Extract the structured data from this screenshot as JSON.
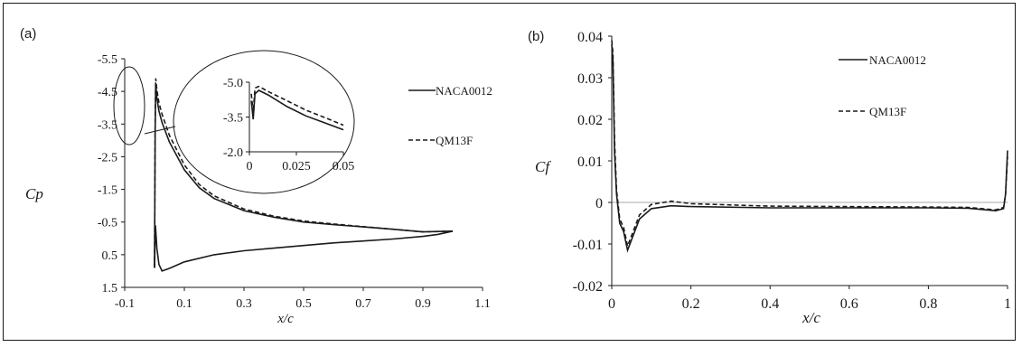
{
  "chart_data": [
    {
      "panel_label": "(a)",
      "type": "line",
      "xlabel": "x/c",
      "ylabel": "Cp",
      "xlim": [
        -0.1,
        1.1
      ],
      "ylim": [
        -5.5,
        1.5
      ],
      "y_inverted": true,
      "x_ticks": [
        "-0.1",
        "0.1",
        "0.3",
        "0.5",
        "0.7",
        "0.9",
        "1.1"
      ],
      "y_ticks": [
        "-5.5",
        "-4.5",
        "-3.5",
        "-2.5",
        "-1.5",
        "-0.5",
        "0.5",
        "1.5"
      ],
      "grid": false,
      "legend_position": "right",
      "series": [
        {
          "name": "NACA0012",
          "style": "solid",
          "upper": [
            [
              0.0,
              0.9
            ],
            [
              0.002,
              -3.2
            ],
            [
              0.004,
              -4.75
            ],
            [
              0.008,
              -4.3
            ],
            [
              0.015,
              -3.9
            ],
            [
              0.025,
              -3.55
            ],
            [
              0.05,
              -2.95
            ],
            [
              0.1,
              -2.1
            ],
            [
              0.15,
              -1.55
            ],
            [
              0.2,
              -1.22
            ],
            [
              0.3,
              -0.85
            ],
            [
              0.4,
              -0.65
            ],
            [
              0.5,
              -0.5
            ],
            [
              0.6,
              -0.42
            ],
            [
              0.7,
              -0.35
            ],
            [
              0.8,
              -0.28
            ],
            [
              0.9,
              -0.2
            ],
            [
              1.0,
              -0.22
            ]
          ],
          "lower": [
            [
              0.0,
              0.9
            ],
            [
              0.003,
              -0.4
            ],
            [
              0.008,
              0.3
            ],
            [
              0.015,
              0.8
            ],
            [
              0.025,
              1.0
            ],
            [
              0.05,
              0.92
            ],
            [
              0.1,
              0.72
            ],
            [
              0.2,
              0.5
            ],
            [
              0.3,
              0.38
            ],
            [
              0.4,
              0.3
            ],
            [
              0.5,
              0.22
            ],
            [
              0.6,
              0.14
            ],
            [
              0.7,
              0.08
            ],
            [
              0.8,
              0.02
            ],
            [
              0.9,
              -0.06
            ],
            [
              0.95,
              -0.12
            ],
            [
              1.0,
              -0.22
            ]
          ]
        },
        {
          "name": "QM13F",
          "style": "dashed",
          "upper": [
            [
              0.0,
              0.9
            ],
            [
              0.002,
              -3.5
            ],
            [
              0.004,
              -4.9
            ],
            [
              0.008,
              -4.55
            ],
            [
              0.015,
              -4.15
            ],
            [
              0.025,
              -3.8
            ],
            [
              0.05,
              -3.15
            ],
            [
              0.1,
              -2.25
            ],
            [
              0.15,
              -1.65
            ],
            [
              0.2,
              -1.3
            ],
            [
              0.3,
              -0.9
            ],
            [
              0.4,
              -0.68
            ],
            [
              0.5,
              -0.53
            ],
            [
              0.6,
              -0.44
            ],
            [
              0.7,
              -0.36
            ],
            [
              0.8,
              -0.28
            ],
            [
              0.9,
              -0.2
            ],
            [
              1.0,
              -0.22
            ]
          ]
        }
      ],
      "inset": {
        "xlim": [
          0,
          0.05
        ],
        "ylim": [
          -5.0,
          -2.0
        ],
        "x_ticks": [
          "0",
          "0.025",
          "0.05"
        ],
        "y_ticks": [
          "-5.0",
          "-3.5",
          "-2.0"
        ],
        "series": [
          {
            "name": "NACA0012",
            "style": "solid",
            "points": [
              [
                0.001,
                -4.2
              ],
              [
                0.002,
                -3.4
              ],
              [
                0.003,
                -4.5
              ],
              [
                0.005,
                -4.65
              ],
              [
                0.01,
                -4.45
              ],
              [
                0.02,
                -3.95
              ],
              [
                0.03,
                -3.55
              ],
              [
                0.04,
                -3.25
              ],
              [
                0.05,
                -2.95
              ]
            ]
          },
          {
            "name": "QM13F",
            "style": "dashed",
            "points": [
              [
                0.001,
                -4.5
              ],
              [
                0.002,
                -3.7
              ],
              [
                0.003,
                -4.75
              ],
              [
                0.005,
                -4.82
              ],
              [
                0.01,
                -4.6
              ],
              [
                0.02,
                -4.2
              ],
              [
                0.03,
                -3.8
              ],
              [
                0.04,
                -3.48
              ],
              [
                0.05,
                -3.15
              ]
            ]
          }
        ]
      }
    },
    {
      "panel_label": "(b)",
      "type": "line",
      "xlabel": "x/c",
      "ylabel": "Cf",
      "xlim": [
        0,
        1
      ],
      "ylim": [
        -0.02,
        0.04
      ],
      "x_ticks": [
        "0",
        "0.2",
        "0.4",
        "0.6",
        "0.8",
        "1"
      ],
      "y_ticks": [
        "0.04",
        "0.03",
        "0.02",
        "0.01",
        "0",
        "-0.01",
        "-0.02"
      ],
      "grid": false,
      "legend_position": "top-right",
      "series": [
        {
          "name": "NACA0012",
          "style": "solid",
          "points": [
            [
              0.0,
              0.038
            ],
            [
              0.003,
              0.034
            ],
            [
              0.007,
              0.012
            ],
            [
              0.012,
              0.002
            ],
            [
              0.02,
              -0.005
            ],
            [
              0.03,
              -0.007
            ],
            [
              0.04,
              -0.0115
            ],
            [
              0.05,
              -0.009
            ],
            [
              0.07,
              -0.004
            ],
            [
              0.1,
              -0.0015
            ],
            [
              0.15,
              -0.0008
            ],
            [
              0.2,
              -0.001
            ],
            [
              0.4,
              -0.0013
            ],
            [
              0.6,
              -0.0013
            ],
            [
              0.8,
              -0.0013
            ],
            [
              0.9,
              -0.0014
            ],
            [
              0.97,
              -0.002
            ],
            [
              0.99,
              -0.0015
            ],
            [
              0.995,
              0.002
            ],
            [
              1.0,
              0.0125
            ]
          ]
        },
        {
          "name": "QM13F",
          "style": "dashed",
          "points": [
            [
              0.0,
              0.039
            ],
            [
              0.003,
              0.036
            ],
            [
              0.007,
              0.015
            ],
            [
              0.012,
              0.003
            ],
            [
              0.02,
              -0.004
            ],
            [
              0.03,
              -0.006
            ],
            [
              0.04,
              -0.0105
            ],
            [
              0.05,
              -0.008
            ],
            [
              0.07,
              -0.003
            ],
            [
              0.1,
              -0.0005
            ],
            [
              0.15,
              0.0003
            ],
            [
              0.2,
              -0.0003
            ],
            [
              0.4,
              -0.0009
            ],
            [
              0.6,
              -0.001
            ],
            [
              0.8,
              -0.0011
            ],
            [
              0.9,
              -0.0012
            ],
            [
              0.97,
              -0.0018
            ],
            [
              0.99,
              -0.0012
            ],
            [
              0.995,
              0.002
            ],
            [
              1.0,
              0.011
            ]
          ]
        }
      ]
    }
  ]
}
